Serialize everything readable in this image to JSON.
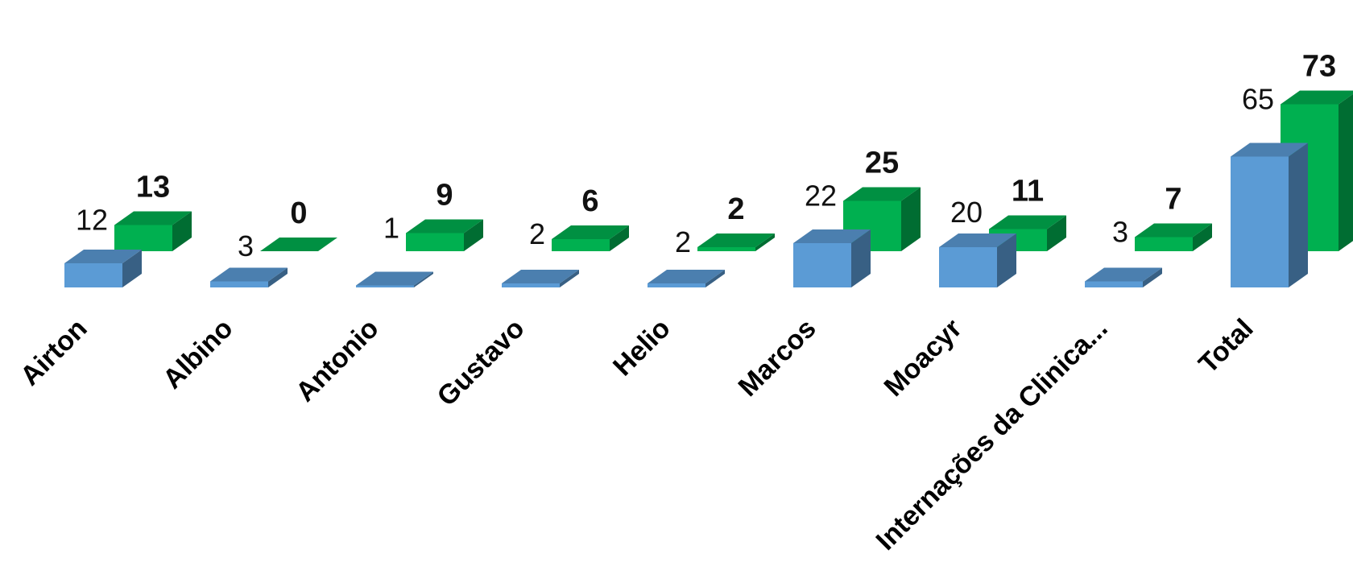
{
  "chart_data": {
    "type": "bar",
    "categories": [
      "Airton",
      "Albino",
      "Antonio",
      "Gustavo",
      "Helio",
      "Marcos",
      "Moacyr",
      "Internações da Clinica...",
      "Total"
    ],
    "series": [
      {
        "values": [
          12,
          3,
          1,
          2,
          2,
          22,
          20,
          3,
          65
        ],
        "labels": [
          "12",
          "3",
          "1",
          "2",
          "2",
          "22",
          "20",
          "3",
          "65"
        ],
        "color": "#5b9bd5"
      },
      {
        "values": [
          13,
          0,
          9,
          6,
          2,
          25,
          11,
          7,
          73
        ],
        "labels": [
          "13",
          "0",
          "9",
          "6",
          "2",
          "25",
          "11",
          "7",
          "73"
        ],
        "color": "#00b050"
      }
    ],
    "style": "3d-column",
    "grid": false,
    "legend": "none",
    "title": "",
    "xlabel": "",
    "ylabel": ""
  }
}
